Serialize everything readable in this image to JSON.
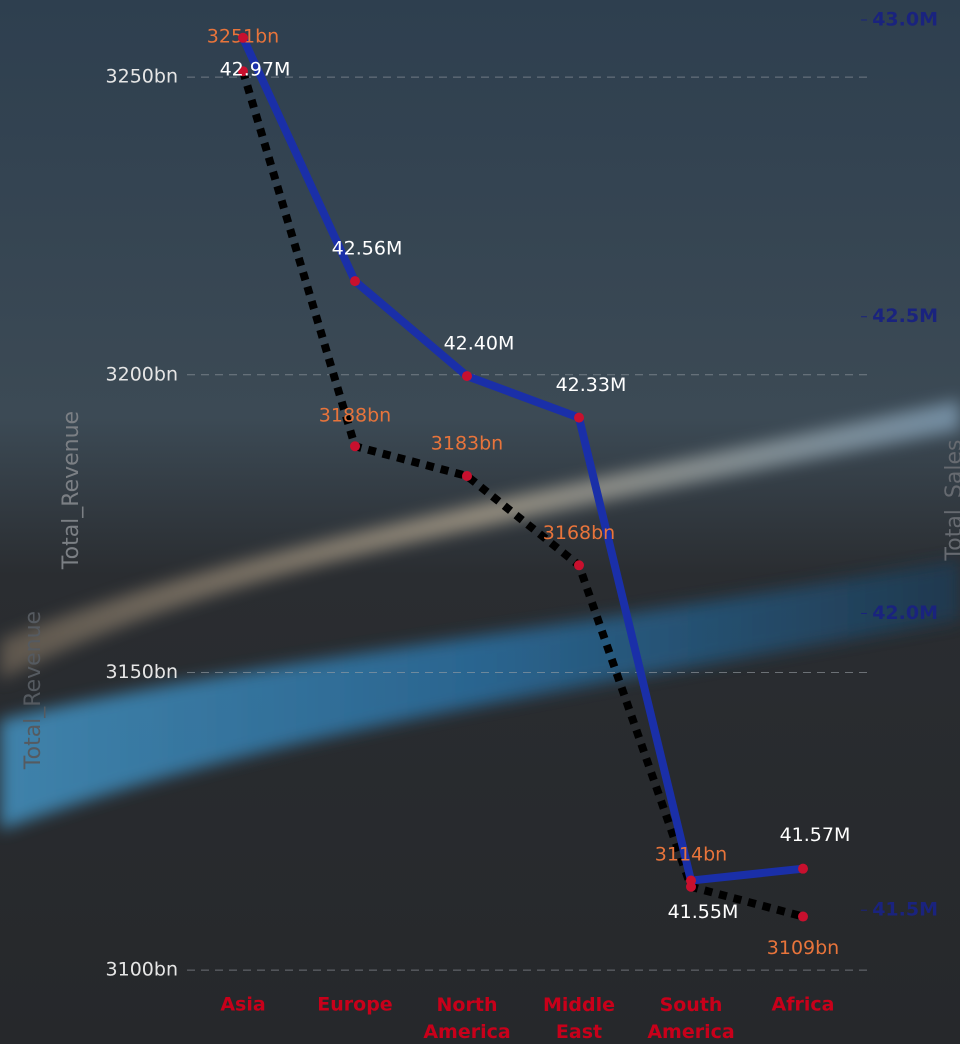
{
  "chart_data": {
    "type": "line",
    "ylabel": "Total_Revenue",
    "y2label": "Total_Sales",
    "categories": [
      "Asia",
      "Europe",
      "North America",
      "Middle East",
      "South America",
      "Africa"
    ],
    "series": [
      {
        "name": "Total_Revenue",
        "color": "#000000",
        "values": [
          3251,
          3188,
          3183,
          3168,
          3114,
          3109
        ],
        "value_labels": [
          "3251bn",
          "3188bn",
          "3183bn",
          "3168bn",
          "3114bn",
          "3109bn"
        ]
      },
      {
        "name": "Total_Sales",
        "color": "#1a2fa8",
        "axis": "y2",
        "values": [
          42.97,
          42.56,
          42.4,
          42.33,
          41.55,
          41.57
        ],
        "value_labels": [
          "42.97M",
          "42.56M",
          "42.40M",
          "42.33M",
          "41.55M",
          "41.57M"
        ]
      }
    ],
    "ylim": [
      3097.5,
      3259.6
    ],
    "yticks": [
      {
        "value": 3100,
        "label": "3100bn"
      },
      {
        "value": 3150,
        "label": "3150bn"
      },
      {
        "value": 3200,
        "label": "3200bn"
      },
      {
        "value": 3250,
        "label": "3250bn"
      }
    ],
    "y2lim": [
      41.374,
      43.0
    ],
    "y2ticks": [
      {
        "value": 41.5,
        "label": "41.5M"
      },
      {
        "value": 42.0,
        "label": "42.0M"
      },
      {
        "value": 42.5,
        "label": "42.5M"
      },
      {
        "value": 43.0,
        "label": "43.0M"
      }
    ],
    "grid": true
  }
}
